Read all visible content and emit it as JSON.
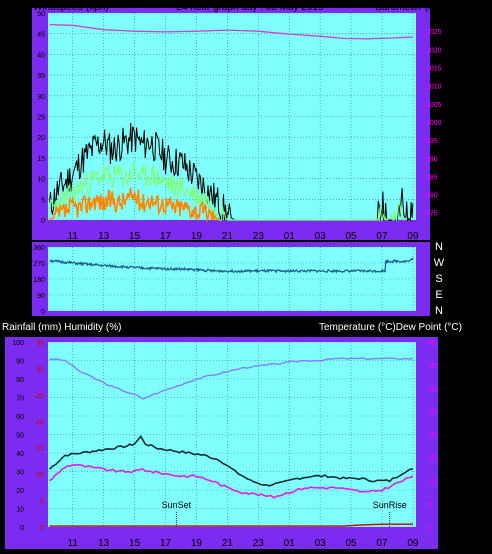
{
  "headings": {
    "top_left": "Windspeed (kph)",
    "top_center": "24 hour graph day : 05 May 2019",
    "top_right": "Barometer (hpa)",
    "bottom_left": "Rainfall (mm)  Humidity (%)",
    "bottom_right": "Temperature (°C)Dew Point (°C)"
  },
  "colors": {
    "frame": "#7b2cf0",
    "plot_bg": "#80ffff",
    "grid": "#3a7a7a",
    "axis_text_left": "#000000",
    "axis_text_right": "#ff00ff",
    "barometer": "#cc44cc",
    "wind_gust": "#000000",
    "wind_avg": "#80ff80",
    "wind_low": "#ff8800",
    "direction": "#1a5a8a",
    "humidity": "#8080ff",
    "temperature": "#103030",
    "dewpoint": "#e020e0",
    "rainfall": "#cc0000"
  },
  "x_ticks": [
    "11",
    "13",
    "15",
    "17",
    "19",
    "21",
    "23",
    "01",
    "03",
    "05",
    "07",
    "09"
  ],
  "chart_data": [
    {
      "type": "line",
      "name": "wind-barometer",
      "x_range_hours": [
        9.4,
        33.2
      ],
      "y_left": {
        "ticks": [
          "0",
          "5",
          "10",
          "15",
          "20",
          "25",
          "30",
          "35",
          "40",
          "45",
          "50"
        ],
        "ylim": [
          0,
          50
        ]
      },
      "y_right": {
        "ticks": [
          "975",
          "980",
          "985",
          "990",
          "995",
          "1000",
          "1005",
          "1010",
          "1015",
          "1020",
          "1025"
        ],
        "ylim": [
          973,
          1030
        ]
      },
      "series": [
        {
          "key": "barometer",
          "axis": "right",
          "points": [
            [
              9.5,
              1026.8
            ],
            [
              11,
              1026.6
            ],
            [
              13,
              1025.4
            ],
            [
              15,
              1025.0
            ],
            [
              17,
              1024.8
            ],
            [
              19,
              1025.0
            ],
            [
              21,
              1025.3
            ],
            [
              23,
              1025.0
            ],
            [
              25,
              1024.2
            ],
            [
              27,
              1023.6
            ],
            [
              28.5,
              1023.0
            ],
            [
              30,
              1022.9
            ],
            [
              31.5,
              1023.1
            ],
            [
              33,
              1023.4
            ]
          ]
        },
        {
          "key": "wind_gust",
          "axis": "left",
          "points": [
            [
              9.5,
              3
            ],
            [
              10,
              7
            ],
            [
              10.5,
              9
            ],
            [
              11,
              11
            ],
            [
              11.5,
              14
            ],
            [
              12,
              16
            ],
            [
              12.5,
              18
            ],
            [
              13,
              19
            ],
            [
              13.5,
              17
            ],
            [
              14,
              18
            ],
            [
              14.5,
              19
            ],
            [
              15,
              20
            ],
            [
              15.5,
              18
            ],
            [
              16,
              19
            ],
            [
              16.5,
              17
            ],
            [
              17,
              15
            ],
            [
              17.5,
              14
            ],
            [
              18,
              14
            ],
            [
              18.5,
              12
            ],
            [
              19,
              10
            ],
            [
              19.5,
              8
            ],
            [
              20,
              6
            ],
            [
              20.5,
              4
            ],
            [
              21,
              1
            ],
            [
              21.5,
              0
            ],
            [
              30.7,
              0
            ],
            [
              31.0,
              4
            ],
            [
              31.3,
              0
            ],
            [
              32.0,
              0
            ],
            [
              32.3,
              4
            ],
            [
              32.6,
              1
            ],
            [
              33.0,
              4
            ]
          ]
        },
        {
          "key": "wind_avg",
          "axis": "left",
          "points": [
            [
              9.5,
              2
            ],
            [
              10,
              4
            ],
            [
              10.5,
              5
            ],
            [
              11,
              6
            ],
            [
              11.5,
              8
            ],
            [
              12,
              9
            ],
            [
              12.5,
              10
            ],
            [
              13,
              11
            ],
            [
              13.5,
              10
            ],
            [
              14,
              11
            ],
            [
              14.5,
              10
            ],
            [
              15,
              12
            ],
            [
              15.5,
              10
            ],
            [
              16,
              11
            ],
            [
              16.5,
              10
            ],
            [
              17,
              9
            ],
            [
              17.5,
              8
            ],
            [
              18,
              8
            ],
            [
              18.5,
              7
            ],
            [
              19,
              6
            ],
            [
              19.5,
              5
            ],
            [
              20,
              4
            ],
            [
              20.5,
              2
            ],
            [
              21,
              0
            ],
            [
              30.7,
              0
            ],
            [
              31.0,
              2
            ],
            [
              31.3,
              0
            ],
            [
              32.3,
              2
            ],
            [
              32.6,
              0
            ]
          ]
        },
        {
          "key": "wind_low",
          "axis": "left",
          "points": [
            [
              9.5,
              0
            ],
            [
              10,
              1
            ],
            [
              10.5,
              2
            ],
            [
              11,
              3
            ],
            [
              11.5,
              3
            ],
            [
              12,
              4
            ],
            [
              12.5,
              5
            ],
            [
              13,
              4
            ],
            [
              13.5,
              5
            ],
            [
              14,
              4
            ],
            [
              14.5,
              5
            ],
            [
              15,
              6
            ],
            [
              15.5,
              4
            ],
            [
              16,
              5
            ],
            [
              16.5,
              4
            ],
            [
              17,
              4
            ],
            [
              17.5,
              3
            ],
            [
              18,
              3
            ],
            [
              18.5,
              3
            ],
            [
              19,
              2
            ],
            [
              19.5,
              2
            ],
            [
              20,
              1
            ],
            [
              20.5,
              0
            ]
          ]
        }
      ]
    },
    {
      "type": "line",
      "name": "wind-direction",
      "x_range_hours": [
        9.4,
        33.2
      ],
      "y_left": {
        "ticks": [
          "360",
          "270",
          "180",
          "90",
          "0"
        ],
        "ylim": [
          0,
          360
        ]
      },
      "y_right_labels": [
        "N",
        "W",
        "S",
        "E",
        "N"
      ],
      "series": [
        {
          "key": "direction",
          "points": [
            [
              9.5,
              285
            ],
            [
              10,
              278
            ],
            [
              11,
              270
            ],
            [
              12,
              262
            ],
            [
              13,
              255
            ],
            [
              14,
              250
            ],
            [
              15,
              244
            ],
            [
              16,
              240
            ],
            [
              17,
              238
            ],
            [
              18,
              236
            ],
            [
              19,
              232
            ],
            [
              19.8,
              228
            ],
            [
              20.1,
              225
            ],
            [
              20.2,
              225
            ],
            [
              31.2,
              225
            ],
            [
              31.25,
              280
            ],
            [
              32.8,
              280
            ],
            [
              33.0,
              300
            ]
          ]
        }
      ]
    },
    {
      "type": "line",
      "name": "temp-humidity-rain",
      "x_range_hours": [
        9.4,
        33.2
      ],
      "y_left": {
        "ticks": [
          "0",
          "10",
          "20",
          "30",
          "40",
          "50",
          "60",
          "70",
          "80",
          "90",
          "100"
        ],
        "ylim": [
          0,
          100
        ]
      },
      "y_left_inner": {
        "ticks": [
          "0",
          "5",
          "10",
          "15",
          "20",
          "25",
          "30",
          "35"
        ],
        "ylim": [
          0,
          35
        ]
      },
      "y_right": {
        "ticks": [
          "0",
          "5",
          "10",
          "15",
          "20",
          "25",
          "30",
          "35",
          "40"
        ],
        "ylim": [
          0,
          40
        ]
      },
      "annotations": [
        {
          "text": "SunSet",
          "x": 17.7
        },
        {
          "text": "SunRise",
          "x": 31.5
        }
      ],
      "series": [
        {
          "key": "humidity",
          "axis": "left",
          "points": [
            [
              9.5,
              91
            ],
            [
              10.5,
              90
            ],
            [
              11.5,
              84
            ],
            [
              12.5,
              80
            ],
            [
              13.5,
              76
            ],
            [
              14.5,
              73
            ],
            [
              15.2,
              71
            ],
            [
              15.5,
              69
            ],
            [
              16,
              71
            ],
            [
              17,
              74
            ],
            [
              18,
              77
            ],
            [
              19,
              80
            ],
            [
              20,
              82
            ],
            [
              21,
              84
            ],
            [
              22,
              86
            ],
            [
              23,
              87
            ],
            [
              24,
              88
            ],
            [
              25,
              89
            ],
            [
              26,
              90
            ],
            [
              27,
              90
            ],
            [
              28,
              91
            ],
            [
              29,
              91
            ],
            [
              30,
              91
            ],
            [
              31,
              91
            ],
            [
              32,
              91
            ],
            [
              33,
              91
            ]
          ]
        },
        {
          "key": "temperature",
          "axis": "right",
          "points": [
            [
              9.5,
              12.5
            ],
            [
              10.5,
              15.5
            ],
            [
              11.5,
              16
            ],
            [
              12.5,
              16.5
            ],
            [
              13.5,
              17
            ],
            [
              14.5,
              17.5
            ],
            [
              15,
              18
            ],
            [
              15.4,
              19.5
            ],
            [
              15.7,
              18
            ],
            [
              16.5,
              17
            ],
            [
              17.5,
              16.5
            ],
            [
              18.5,
              16
            ],
            [
              19.5,
              15.5
            ],
            [
              20.5,
              14.5
            ],
            [
              21.5,
              12
            ],
            [
              22.5,
              10
            ],
            [
              23.5,
              9
            ],
            [
              24.5,
              9.5
            ],
            [
              25.5,
              10.5
            ],
            [
              26.5,
              11
            ],
            [
              27.5,
              11
            ],
            [
              28.5,
              10.5
            ],
            [
              29.5,
              10.5
            ],
            [
              30.5,
              10
            ],
            [
              31.5,
              10
            ],
            [
              32.5,
              12
            ],
            [
              33,
              12.5
            ]
          ]
        },
        {
          "key": "dewpoint",
          "axis": "right",
          "points": [
            [
              9.5,
              10
            ],
            [
              10,
              11.5
            ],
            [
              10.5,
              13
            ],
            [
              11,
              13.5
            ],
            [
              12,
              13
            ],
            [
              13,
              12.5
            ],
            [
              14,
              12
            ],
            [
              15,
              12
            ],
            [
              15.5,
              12.5
            ],
            [
              16,
              12
            ],
            [
              17,
              11.5
            ],
            [
              18,
              11
            ],
            [
              19,
              11
            ],
            [
              20,
              10
            ],
            [
              21,
              8.5
            ],
            [
              22,
              7.5
            ],
            [
              23,
              7
            ],
            [
              24,
              6.5
            ],
            [
              25,
              7.5
            ],
            [
              26,
              8.5
            ],
            [
              27,
              8.5
            ],
            [
              28,
              8.5
            ],
            [
              29,
              8
            ],
            [
              30,
              7.5
            ],
            [
              31,
              8
            ],
            [
              32,
              9.5
            ],
            [
              33,
              11
            ]
          ]
        },
        {
          "key": "rainfall",
          "axis": "left",
          "points": [
            [
              9.5,
              0.5
            ],
            [
              28.5,
              0.5
            ],
            [
              29.5,
              1.0
            ],
            [
              31,
              1.5
            ],
            [
              33,
              1.5
            ]
          ]
        }
      ]
    }
  ]
}
